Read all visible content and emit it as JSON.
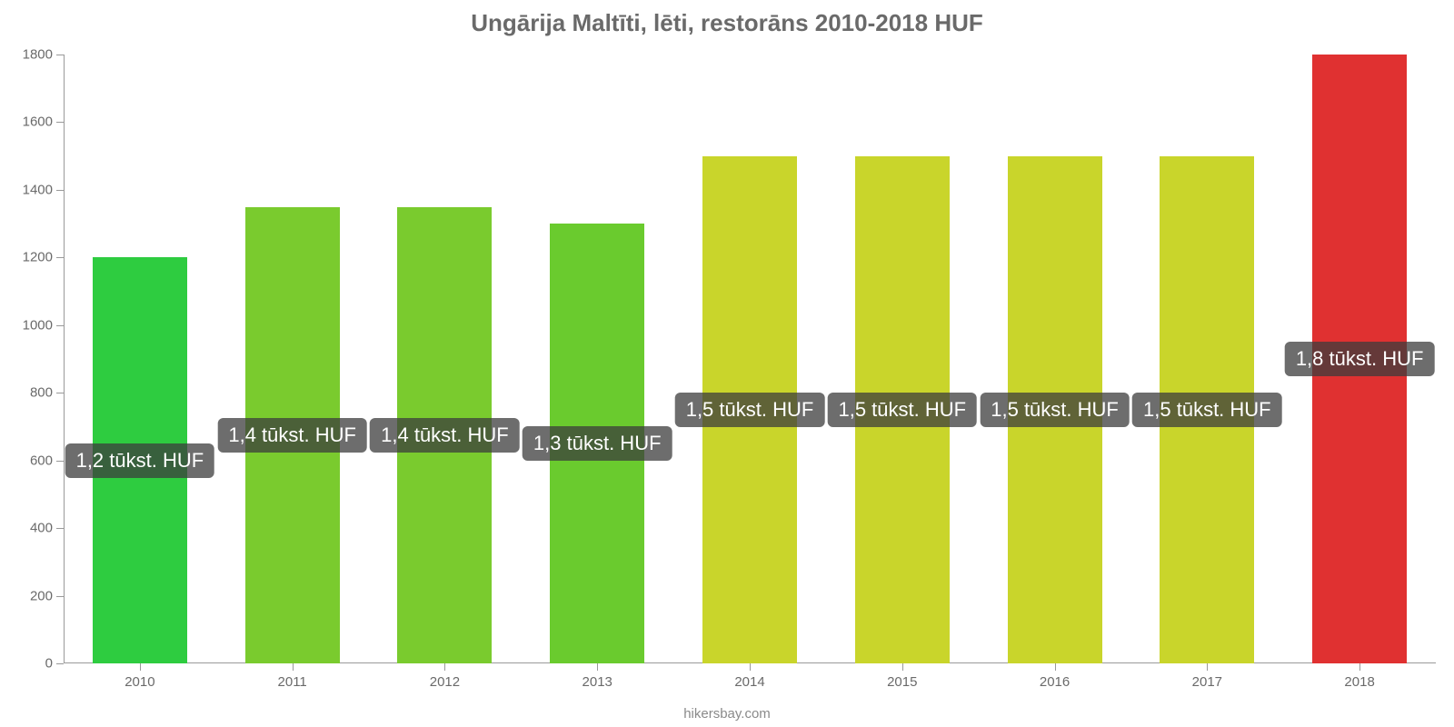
{
  "chart": {
    "type": "bar",
    "title": "Ungārija Maltīti, lēti, restorāns 2010-2018 HUF",
    "title_fontsize": 26,
    "title_color": "#6a6a6a",
    "background_color": "#ffffff",
    "axis_color": "#999999",
    "label_color": "#6a6a6a",
    "source": "hikersbay.com",
    "ylim": [
      0,
      1800
    ],
    "ytick_step": 200,
    "y_ticks": [
      0,
      200,
      400,
      600,
      800,
      1000,
      1200,
      1400,
      1600,
      1800
    ],
    "categories": [
      "2010",
      "2011",
      "2012",
      "2013",
      "2014",
      "2015",
      "2016",
      "2017",
      "2018"
    ],
    "values": [
      1200,
      1350,
      1350,
      1300,
      1500,
      1500,
      1500,
      1500,
      1800
    ],
    "bar_colors": [
      "#2ecc40",
      "#7acb2e",
      "#7acb2e",
      "#6acb2e",
      "#c9d52b",
      "#c9d52b",
      "#c9d52b",
      "#c9d52b",
      "#e03131"
    ],
    "bar_labels": [
      "1,2 tūkst. HUF",
      "1,4 tūkst. HUF",
      "1,4 tūkst. HUF",
      "1,3 tūkst. HUF",
      "1,5 tūkst. HUF",
      "1,5 tūkst. HUF",
      "1,5 tūkst. HUF",
      "1,5 tūkst. HUF",
      "1,8 tūkst. HUF"
    ],
    "tooltip_bg": "rgba(60,60,60,0.75)",
    "tooltip_text_color": "#ffffff",
    "tooltip_fontsize": 22,
    "bar_width_ratio": 0.62,
    "axis_label_fontsize": 15
  }
}
